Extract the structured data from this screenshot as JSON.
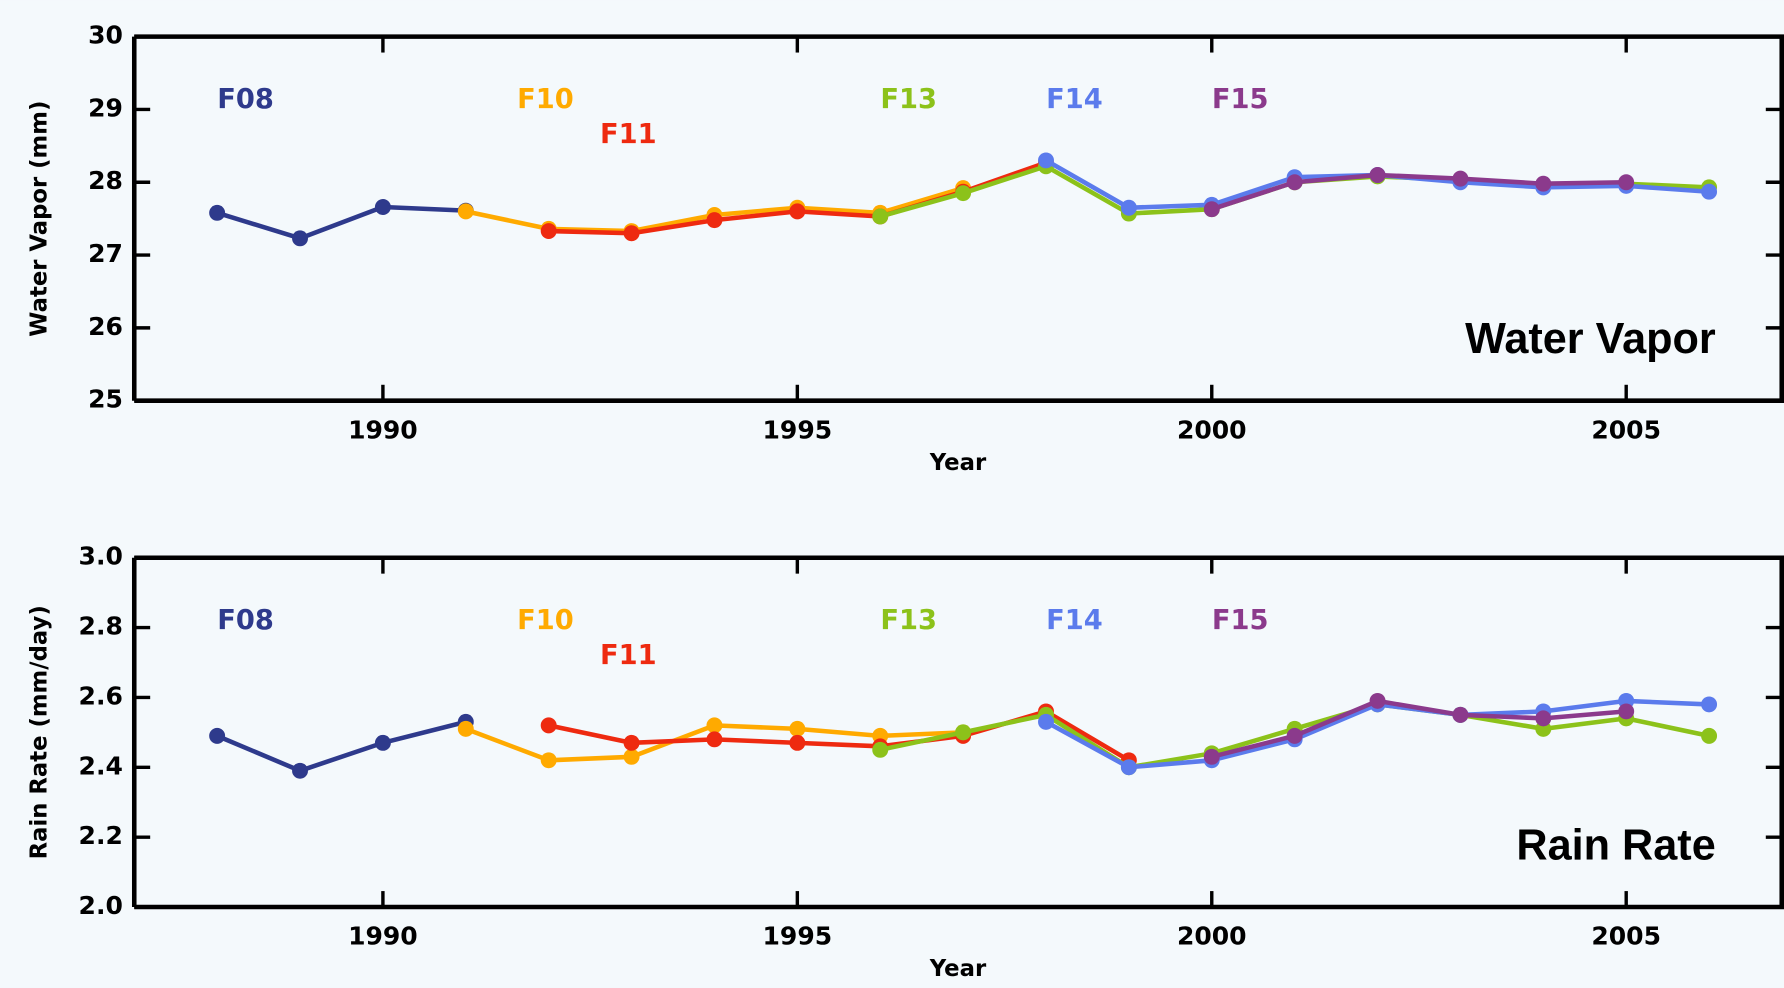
{
  "chart_data": [
    {
      "type": "line",
      "xlabel": "Year",
      "ylabel": "Water Vapor (mm)",
      "annotation": "Water Vapor",
      "xlim": [
        1987,
        2007
      ],
      "xticks": [
        1990,
        1995,
        2000,
        2005
      ],
      "ylim": [
        25,
        30
      ],
      "yticks": [
        25,
        26,
        27,
        28,
        29,
        30
      ],
      "series": [
        {
          "name": "F08",
          "color": "#2e3a8c",
          "x": [
            1988,
            1989,
            1990,
            1991
          ],
          "values": [
            27.58,
            27.23,
            27.66,
            27.61
          ]
        },
        {
          "name": "F10",
          "color": "#ffaa00",
          "x": [
            1991,
            1992,
            1993,
            1994,
            1995,
            1996,
            1997
          ],
          "values": [
            27.6,
            27.36,
            27.33,
            27.55,
            27.65,
            27.58,
            27.92
          ]
        },
        {
          "name": "F11",
          "color": "#ee2a10",
          "x": [
            1992,
            1993,
            1994,
            1995,
            1996,
            1997,
            1998
          ],
          "values": [
            27.33,
            27.3,
            27.48,
            27.6,
            27.53,
            27.87,
            28.27
          ]
        },
        {
          "name": "F13",
          "color": "#8cc21a",
          "x": [
            1996,
            1997,
            1998,
            1999,
            2000,
            2001,
            2002,
            2003,
            2004,
            2005,
            2006
          ],
          "values": [
            27.53,
            27.85,
            28.22,
            27.57,
            27.63,
            28.0,
            28.08,
            28.03,
            27.97,
            27.98,
            27.93
          ]
        },
        {
          "name": "F14",
          "color": "#5b7bec",
          "x": [
            1998,
            1999,
            2000,
            2001,
            2002,
            2003,
            2004,
            2005,
            2006
          ],
          "values": [
            28.3,
            27.65,
            27.69,
            28.07,
            28.1,
            28.0,
            27.93,
            27.95,
            27.87
          ]
        },
        {
          "name": "F15",
          "color": "#8b3a8c",
          "x": [
            2000,
            2001,
            2002,
            2003,
            2004,
            2005
          ],
          "values": [
            27.63,
            28.0,
            28.1,
            28.05,
            27.98,
            28.0
          ]
        }
      ]
    },
    {
      "type": "line",
      "xlabel": "Year",
      "ylabel": "Rain Rate (mm/day)",
      "annotation": "Rain Rate",
      "xlim": [
        1987,
        2007
      ],
      "xticks": [
        1990,
        1995,
        2000,
        2005
      ],
      "ylim": [
        2.0,
        3.0
      ],
      "yticks": [
        {
          "value": 2,
          "label": "2.0"
        },
        2.2,
        2.4,
        2.6,
        2.8,
        {
          "value": 3,
          "label": "3.0"
        }
      ],
      "series": [
        {
          "name": "F08",
          "color": "#2e3a8c",
          "x": [
            1988,
            1989,
            1990,
            1991
          ],
          "values": [
            2.49,
            2.39,
            2.47,
            2.53
          ]
        },
        {
          "name": "F10",
          "color": "#ffaa00",
          "x": [
            1991,
            1992,
            1993,
            1994,
            1995,
            1996,
            1997
          ],
          "values": [
            2.51,
            2.42,
            2.43,
            2.52,
            2.51,
            2.49,
            2.5
          ]
        },
        {
          "name": "F11",
          "color": "#ee2a10",
          "x": [
            1992,
            1993,
            1994,
            1995,
            1996,
            1997,
            1998,
            1999
          ],
          "values": [
            2.52,
            2.47,
            2.48,
            2.47,
            2.46,
            2.49,
            2.56,
            2.42
          ]
        },
        {
          "name": "F13",
          "color": "#8cc21a",
          "x": [
            1996,
            1997,
            1998,
            1999,
            2000,
            2001,
            2002,
            2003,
            2004,
            2005,
            2006
          ],
          "values": [
            2.45,
            2.5,
            2.55,
            2.4,
            2.44,
            2.51,
            2.58,
            2.55,
            2.51,
            2.54,
            2.49
          ]
        },
        {
          "name": "F14",
          "color": "#5b7bec",
          "x": [
            1998,
            1999,
            2000,
            2001,
            2002,
            2003,
            2004,
            2005,
            2006
          ],
          "values": [
            2.53,
            2.4,
            2.42,
            2.48,
            2.58,
            2.55,
            2.56,
            2.59,
            2.58
          ]
        },
        {
          "name": "F15",
          "color": "#8b3a8c",
          "x": [
            2000,
            2001,
            2002,
            2003,
            2004,
            2005
          ],
          "values": [
            2.43,
            2.49,
            2.59,
            2.55,
            2.54,
            2.56
          ]
        }
      ]
    }
  ]
}
